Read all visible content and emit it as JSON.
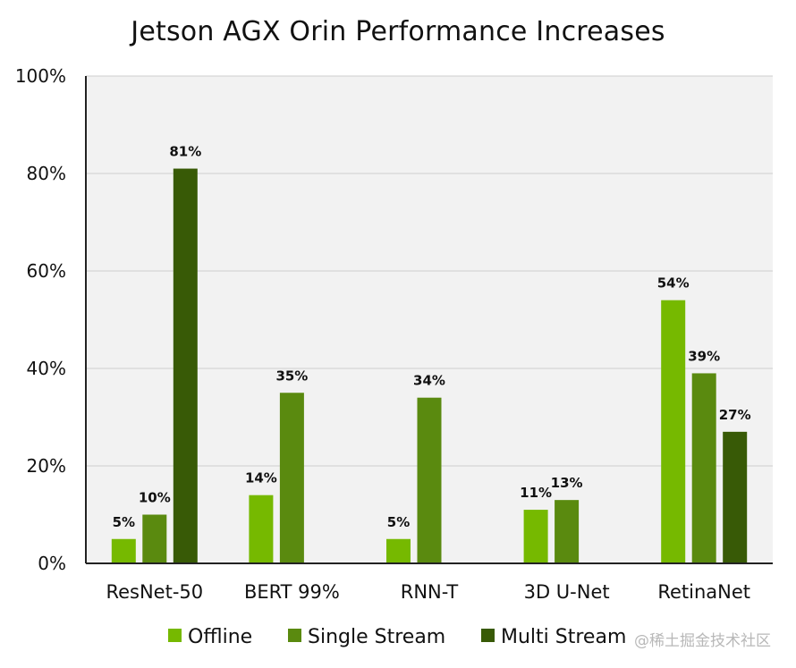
{
  "chart_data": {
    "type": "bar",
    "title": "Jetson AGX Orin Performance Increases",
    "xlabel": "",
    "ylabel": "",
    "categories": [
      "ResNet-50",
      "BERT 99%",
      "RNN-T",
      "3D U-Net",
      "RetinaNet"
    ],
    "ylim": [
      0,
      100
    ],
    "yticks": [
      0,
      20,
      40,
      60,
      80,
      100
    ],
    "ytick_labels": [
      "0%",
      "20%",
      "40%",
      "60%",
      "80%",
      "100%"
    ],
    "grid": true,
    "legend_position": "bottom",
    "series": [
      {
        "name": "Offline",
        "color": "#76b900",
        "values": [
          5,
          14,
          5,
          11,
          54
        ],
        "labels": [
          "5%",
          "14%",
          "5%",
          "11%",
          "54%"
        ]
      },
      {
        "name": "Single Stream",
        "color": "#5a8a0f",
        "values": [
          10,
          35,
          34,
          13,
          39
        ],
        "labels": [
          "10%",
          "35%",
          "34%",
          "13%",
          "39%"
        ]
      },
      {
        "name": "Multi Stream",
        "color": "#385a06",
        "values": [
          81,
          null,
          null,
          null,
          27
        ],
        "labels": [
          "81%",
          null,
          null,
          null,
          "27%"
        ]
      }
    ]
  },
  "plot_background": "#f2f2f2",
  "watermark": "@稀土掘金技术社区"
}
